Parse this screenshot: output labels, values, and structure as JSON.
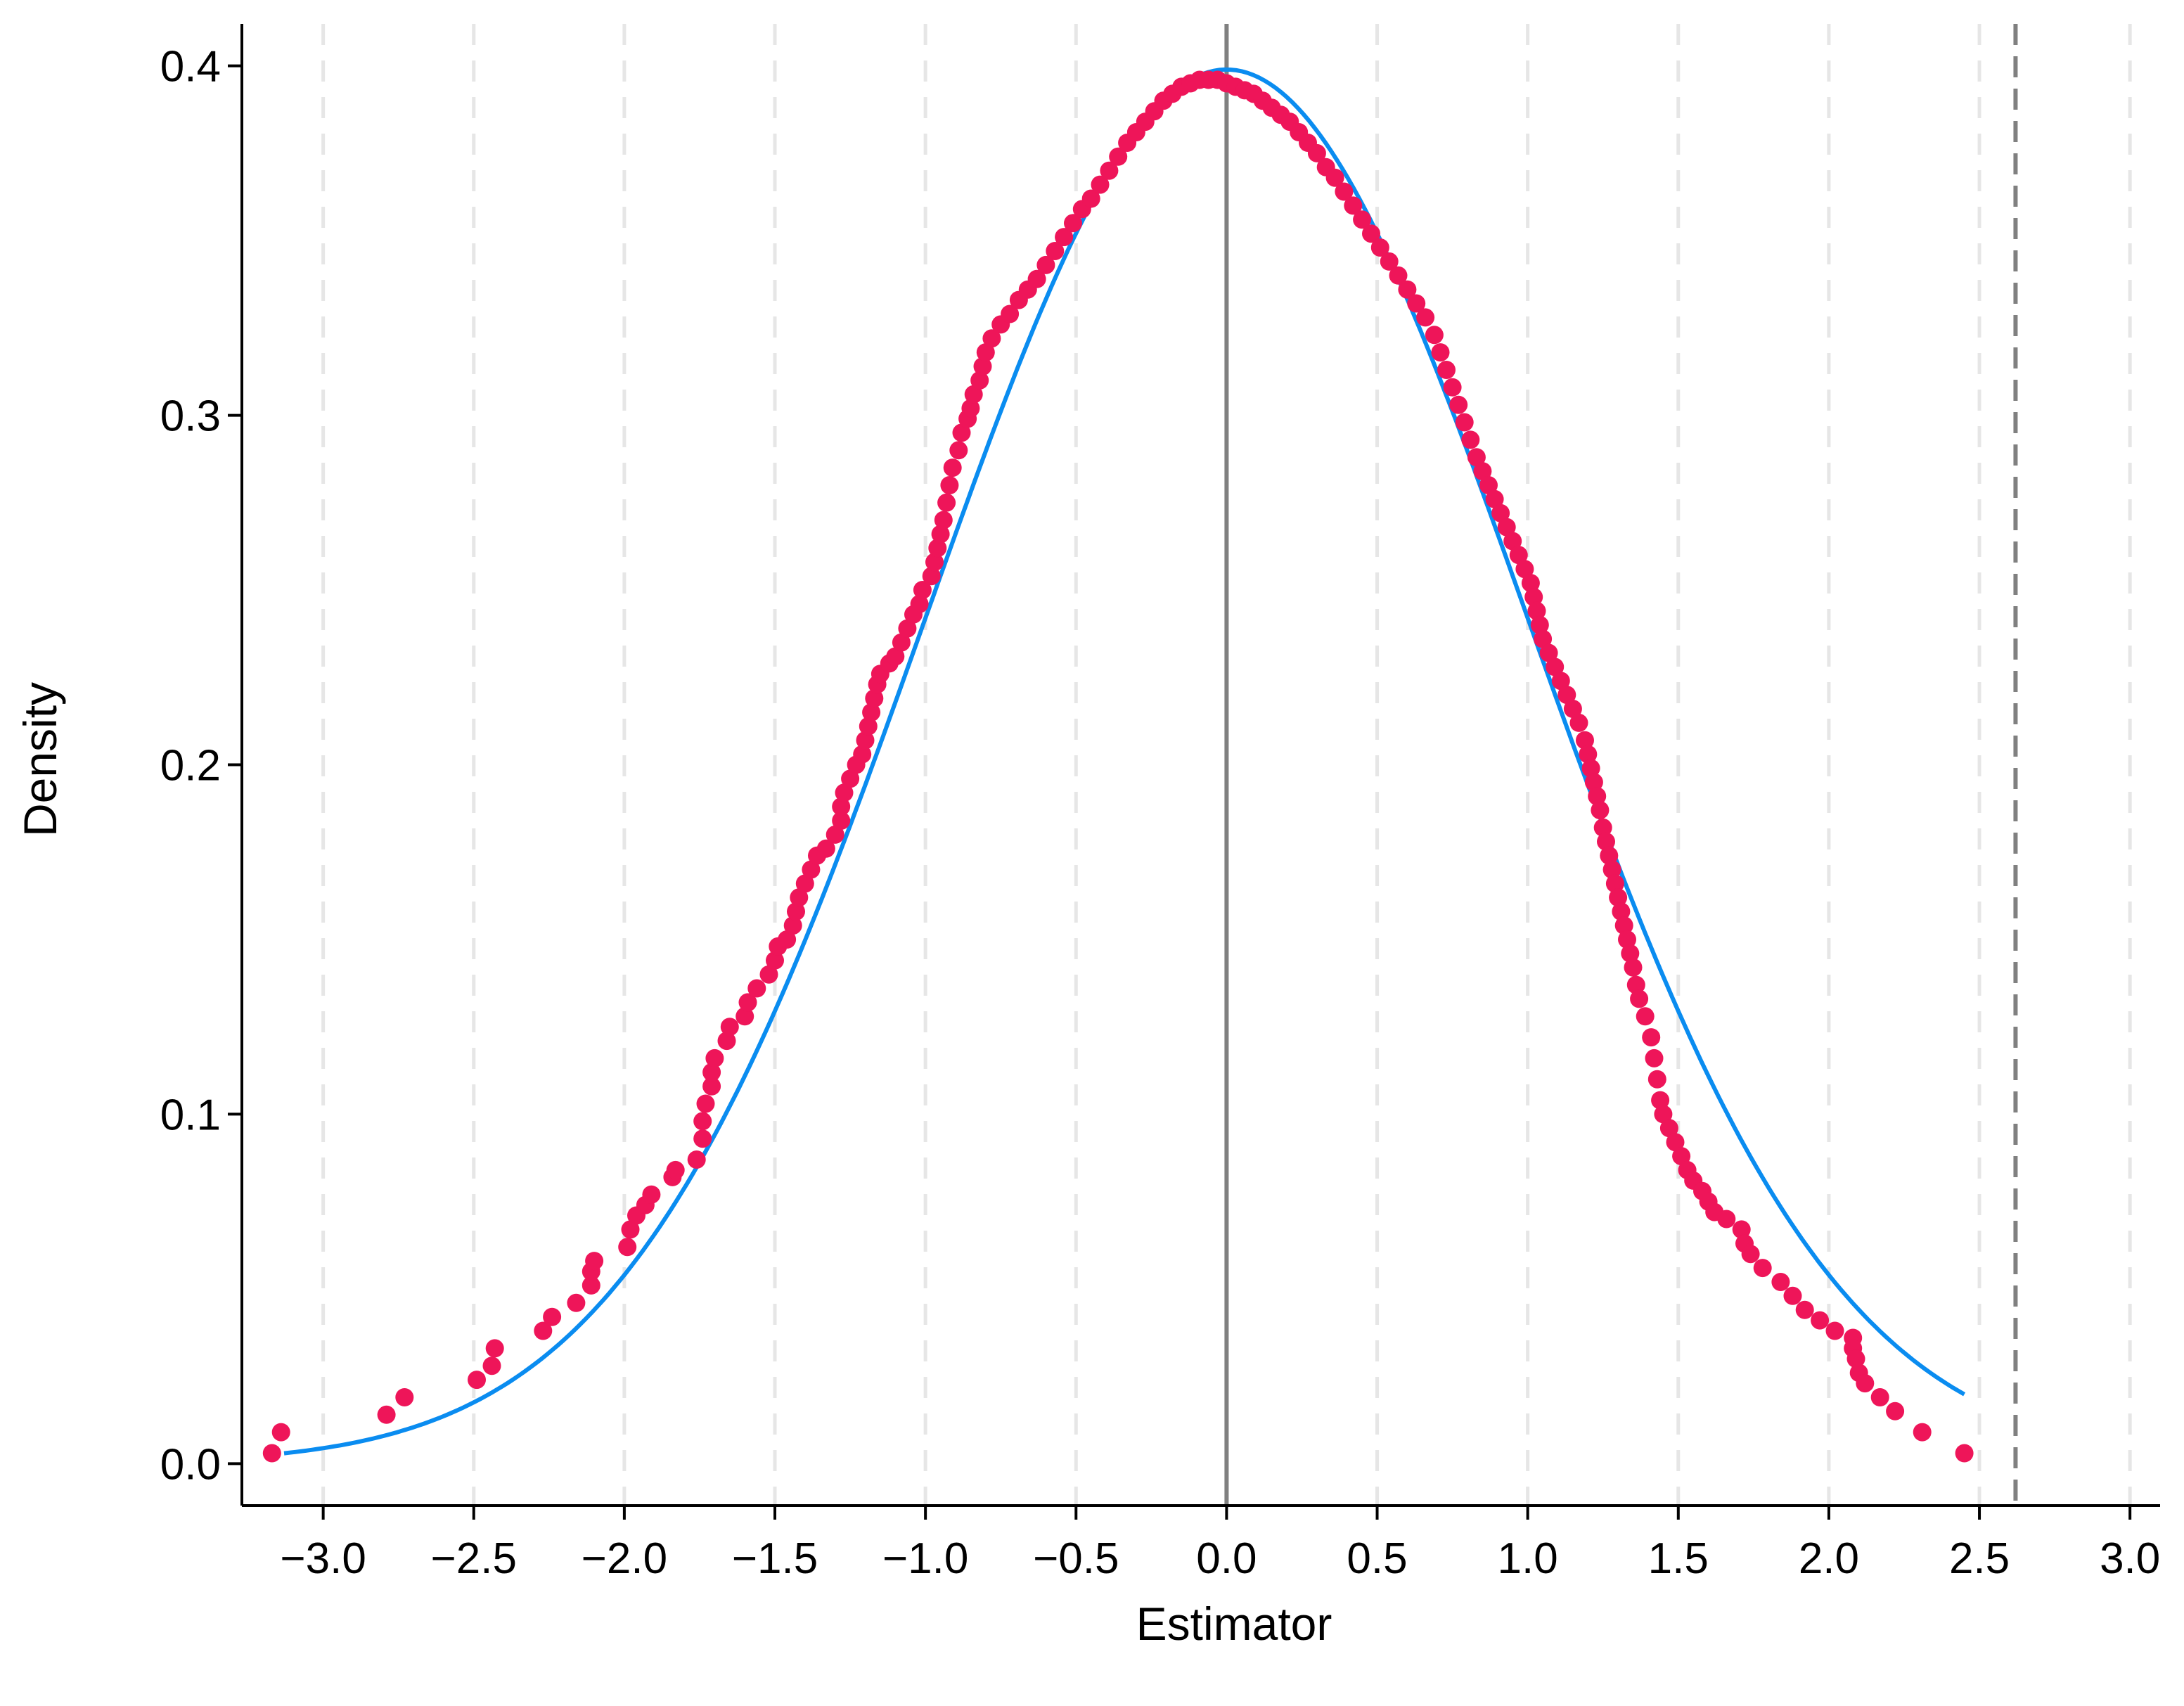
{
  "chart_data": {
    "type": "scatter",
    "title": "",
    "xlabel": "Estimator",
    "ylabel": "Density",
    "xlim": [
      -3.27,
      3.1
    ],
    "ylim": [
      -0.012,
      0.412
    ],
    "x_ticks": [
      -3.0,
      -2.5,
      -2.0,
      -1.5,
      -1.0,
      -0.5,
      0.0,
      0.5,
      1.0,
      1.5,
      2.0,
      2.5,
      3.0
    ],
    "x_tick_labels": [
      "−3.0",
      "−2.5",
      "−2.0",
      "−1.5",
      "−1.0",
      "−0.5",
      "0.0",
      "0.5",
      "1.0",
      "1.5",
      "2.0",
      "2.5",
      "3.0"
    ],
    "y_ticks": [
      0.0,
      0.1,
      0.2,
      0.3,
      0.4
    ],
    "y_tick_labels": [
      "0.0",
      "0.1",
      "0.2",
      "0.3",
      "0.4"
    ],
    "grid": "vertical dashed at x ticks",
    "reference_lines": [
      {
        "x": 0.0,
        "style": "solid"
      },
      {
        "x": 2.62,
        "style": "dashed"
      }
    ],
    "colors": {
      "points": "#ee1559",
      "curve": "#0a8cf0",
      "grid": "#e6e6e6",
      "ref_line": "#808080",
      "axis": "#000000"
    },
    "series": [
      {
        "kind": "scatter",
        "points": [
          [
            -3.17,
            0.003
          ],
          [
            -3.14,
            0.009
          ],
          [
            -2.79,
            0.014
          ],
          [
            -2.73,
            0.019
          ],
          [
            -2.49,
            0.024
          ],
          [
            -2.44,
            0.028
          ],
          [
            -2.43,
            0.033
          ],
          [
            -2.27,
            0.038
          ],
          [
            -2.24,
            0.042
          ],
          [
            -2.16,
            0.046
          ],
          [
            -2.11,
            0.051
          ],
          [
            -2.11,
            0.055
          ],
          [
            -2.1,
            0.058
          ],
          [
            -1.99,
            0.062
          ],
          [
            -1.98,
            0.067
          ],
          [
            -1.96,
            0.071
          ],
          [
            -1.93,
            0.074
          ],
          [
            -1.91,
            0.077
          ],
          [
            -1.84,
            0.082
          ],
          [
            -1.83,
            0.084
          ],
          [
            -1.76,
            0.087
          ],
          [
            -1.74,
            0.093
          ],
          [
            -1.74,
            0.098
          ],
          [
            -1.73,
            0.103
          ],
          [
            -1.71,
            0.108
          ],
          [
            -1.71,
            0.112
          ],
          [
            -1.7,
            0.116
          ],
          [
            -1.66,
            0.121
          ],
          [
            -1.65,
            0.125
          ],
          [
            -1.6,
            0.128
          ],
          [
            -1.59,
            0.132
          ],
          [
            -1.56,
            0.136
          ],
          [
            -1.52,
            0.14
          ],
          [
            -1.5,
            0.144
          ],
          [
            -1.49,
            0.148
          ],
          [
            -1.46,
            0.15
          ],
          [
            -1.44,
            0.154
          ],
          [
            -1.43,
            0.158
          ],
          [
            -1.42,
            0.162
          ],
          [
            -1.4,
            0.166
          ],
          [
            -1.38,
            0.17
          ],
          [
            -1.36,
            0.174
          ],
          [
            -1.33,
            0.176
          ],
          [
            -1.3,
            0.18
          ],
          [
            -1.28,
            0.184
          ],
          [
            -1.28,
            0.188
          ],
          [
            -1.27,
            0.192
          ],
          [
            -1.25,
            0.196
          ],
          [
            -1.23,
            0.2
          ],
          [
            -1.21,
            0.203
          ],
          [
            -1.2,
            0.207
          ],
          [
            -1.19,
            0.211
          ],
          [
            -1.18,
            0.215
          ],
          [
            -1.17,
            0.219
          ],
          [
            -1.16,
            0.223
          ],
          [
            -1.15,
            0.226
          ],
          [
            -1.12,
            0.229
          ],
          [
            -1.1,
            0.231
          ],
          [
            -1.08,
            0.235
          ],
          [
            -1.06,
            0.239
          ],
          [
            -1.04,
            0.243
          ],
          [
            -1.02,
            0.246
          ],
          [
            -1.01,
            0.25
          ],
          [
            -0.98,
            0.254
          ],
          [
            -0.97,
            0.258
          ],
          [
            -0.96,
            0.262
          ],
          [
            -0.95,
            0.266
          ],
          [
            -0.94,
            0.27
          ],
          [
            -0.93,
            0.275
          ],
          [
            -0.92,
            0.28
          ],
          [
            -0.91,
            0.285
          ],
          [
            -0.89,
            0.29
          ],
          [
            -0.88,
            0.295
          ],
          [
            -0.86,
            0.299
          ],
          [
            -0.85,
            0.302
          ],
          [
            -0.84,
            0.306
          ],
          [
            -0.82,
            0.31
          ],
          [
            -0.81,
            0.314
          ],
          [
            -0.8,
            0.318
          ],
          [
            -0.78,
            0.322
          ],
          [
            -0.75,
            0.326
          ],
          [
            -0.72,
            0.329
          ],
          [
            -0.69,
            0.333
          ],
          [
            -0.66,
            0.336
          ],
          [
            -0.63,
            0.339
          ],
          [
            -0.6,
            0.343
          ],
          [
            -0.57,
            0.347
          ],
          [
            -0.54,
            0.351
          ],
          [
            -0.51,
            0.355
          ],
          [
            -0.48,
            0.359
          ],
          [
            -0.45,
            0.362
          ],
          [
            -0.42,
            0.366
          ],
          [
            -0.39,
            0.37
          ],
          [
            -0.36,
            0.374
          ],
          [
            -0.33,
            0.378
          ],
          [
            -0.3,
            0.381
          ],
          [
            -0.27,
            0.384
          ],
          [
            -0.24,
            0.387
          ],
          [
            -0.21,
            0.39
          ],
          [
            -0.18,
            0.392
          ],
          [
            -0.15,
            0.394
          ],
          [
            -0.12,
            0.395
          ],
          [
            -0.09,
            0.396
          ],
          [
            -0.06,
            0.396
          ],
          [
            -0.03,
            0.396
          ],
          [
            0.0,
            0.395
          ],
          [
            0.03,
            0.394
          ],
          [
            0.06,
            0.393
          ],
          [
            0.09,
            0.392
          ],
          [
            0.12,
            0.39
          ],
          [
            0.15,
            0.388
          ],
          [
            0.18,
            0.386
          ],
          [
            0.21,
            0.384
          ],
          [
            0.24,
            0.381
          ],
          [
            0.27,
            0.378
          ],
          [
            0.3,
            0.375
          ],
          [
            0.33,
            0.371
          ],
          [
            0.36,
            0.368
          ],
          [
            0.39,
            0.364
          ],
          [
            0.42,
            0.36
          ],
          [
            0.45,
            0.356
          ],
          [
            0.48,
            0.352
          ],
          [
            0.51,
            0.348
          ],
          [
            0.54,
            0.344
          ],
          [
            0.57,
            0.34
          ],
          [
            0.6,
            0.336
          ],
          [
            0.63,
            0.332
          ],
          [
            0.66,
            0.328
          ],
          [
            0.69,
            0.323
          ],
          [
            0.71,
            0.318
          ],
          [
            0.73,
            0.313
          ],
          [
            0.75,
            0.308
          ],
          [
            0.77,
            0.303
          ],
          [
            0.79,
            0.298
          ],
          [
            0.81,
            0.293
          ],
          [
            0.83,
            0.288
          ],
          [
            0.85,
            0.284
          ],
          [
            0.87,
            0.28
          ],
          [
            0.89,
            0.276
          ],
          [
            0.91,
            0.272
          ],
          [
            0.93,
            0.268
          ],
          [
            0.95,
            0.264
          ],
          [
            0.97,
            0.26
          ],
          [
            0.99,
            0.256
          ],
          [
            1.01,
            0.252
          ],
          [
            1.02,
            0.248
          ],
          [
            1.03,
            0.244
          ],
          [
            1.04,
            0.24
          ],
          [
            1.05,
            0.236
          ],
          [
            1.07,
            0.232
          ],
          [
            1.09,
            0.228
          ],
          [
            1.11,
            0.224
          ],
          [
            1.13,
            0.22
          ],
          [
            1.15,
            0.216
          ],
          [
            1.17,
            0.212
          ],
          [
            1.19,
            0.207
          ],
          [
            1.2,
            0.203
          ],
          [
            1.21,
            0.199
          ],
          [
            1.22,
            0.195
          ],
          [
            1.23,
            0.191
          ],
          [
            1.24,
            0.187
          ],
          [
            1.25,
            0.182
          ],
          [
            1.26,
            0.178
          ],
          [
            1.27,
            0.174
          ],
          [
            1.28,
            0.17
          ],
          [
            1.29,
            0.166
          ],
          [
            1.3,
            0.162
          ],
          [
            1.31,
            0.158
          ],
          [
            1.32,
            0.154
          ],
          [
            1.33,
            0.15
          ],
          [
            1.34,
            0.146
          ],
          [
            1.35,
            0.142
          ],
          [
            1.36,
            0.137
          ],
          [
            1.37,
            0.133
          ],
          [
            1.39,
            0.128
          ],
          [
            1.41,
            0.122
          ],
          [
            1.42,
            0.116
          ],
          [
            1.43,
            0.11
          ],
          [
            1.44,
            0.104
          ],
          [
            1.45,
            0.1
          ],
          [
            1.47,
            0.096
          ],
          [
            1.49,
            0.092
          ],
          [
            1.51,
            0.088
          ],
          [
            1.53,
            0.084
          ],
          [
            1.55,
            0.081
          ],
          [
            1.58,
            0.078
          ],
          [
            1.6,
            0.075
          ],
          [
            1.62,
            0.072
          ],
          [
            1.66,
            0.07
          ],
          [
            1.71,
            0.067
          ],
          [
            1.72,
            0.063
          ],
          [
            1.74,
            0.06
          ],
          [
            1.78,
            0.056
          ],
          [
            1.84,
            0.052
          ],
          [
            1.88,
            0.048
          ],
          [
            1.92,
            0.044
          ],
          [
            1.97,
            0.041
          ],
          [
            2.02,
            0.038
          ],
          [
            2.08,
            0.036
          ],
          [
            2.08,
            0.033
          ],
          [
            2.09,
            0.03
          ],
          [
            2.1,
            0.026
          ],
          [
            2.12,
            0.023
          ],
          [
            2.17,
            0.019
          ],
          [
            2.22,
            0.015
          ],
          [
            2.31,
            0.009
          ],
          [
            2.45,
            0.003
          ]
        ]
      },
      {
        "kind": "line",
        "description_free": true,
        "mean": 0.0,
        "sd": 1.0,
        "x_range": [
          -3.13,
          2.45
        ]
      }
    ]
  }
}
